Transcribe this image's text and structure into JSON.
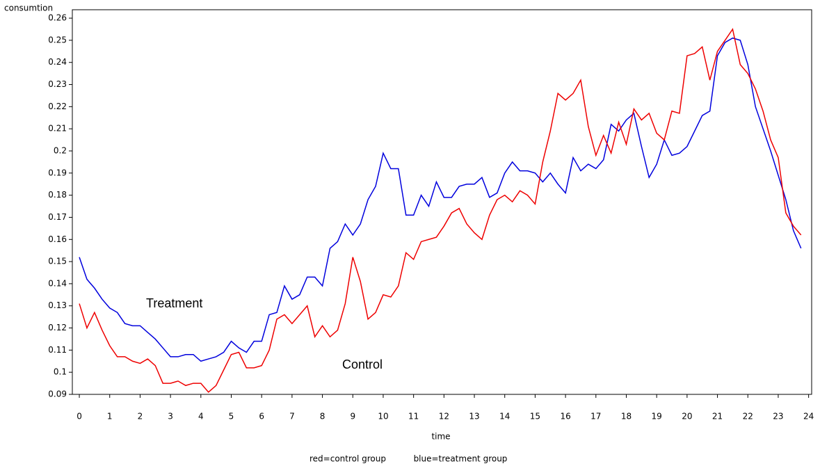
{
  "chart_data": {
    "type": "line",
    "ylabel": "consumtion",
    "xlabel": "time",
    "footnote": [
      "red=control group",
      "blue=treatment group"
    ],
    "annotations": [
      "Treatment",
      "Control"
    ],
    "xlim": [
      -0.23,
      24.1
    ],
    "ylim": [
      0.09,
      0.2638
    ],
    "xticks": [
      0,
      1,
      2,
      3,
      4,
      5,
      6,
      7,
      8,
      9,
      10,
      11,
      12,
      13,
      14,
      15,
      16,
      17,
      18,
      19,
      20,
      21,
      22,
      23,
      24
    ],
    "yticks": [
      0.09,
      0.1,
      0.11,
      0.12,
      0.13,
      0.14,
      0.15,
      0.16,
      0.17,
      0.18,
      0.19,
      0.2,
      0.21,
      0.22,
      0.23,
      0.24,
      0.25,
      0.26
    ],
    "x": [
      0,
      0.25,
      0.5,
      0.75,
      1,
      1.25,
      1.5,
      1.75,
      2,
      2.25,
      2.5,
      2.75,
      3,
      3.25,
      3.5,
      3.75,
      4,
      4.25,
      4.5,
      4.75,
      5,
      5.25,
      5.5,
      5.75,
      6,
      6.25,
      6.5,
      6.75,
      7,
      7.25,
      7.5,
      7.75,
      8,
      8.25,
      8.5,
      8.75,
      9,
      9.25,
      9.5,
      9.75,
      10,
      10.25,
      10.5,
      10.75,
      11,
      11.25,
      11.5,
      11.75,
      12,
      12.25,
      12.5,
      12.75,
      13,
      13.25,
      13.5,
      13.75,
      14,
      14.25,
      14.5,
      14.75,
      15,
      15.25,
      15.5,
      15.75,
      16,
      16.25,
      16.5,
      16.75,
      17,
      17.25,
      17.5,
      17.75,
      18,
      18.25,
      18.5,
      18.75,
      19,
      19.25,
      19.5,
      19.75,
      20,
      20.25,
      20.5,
      20.75,
      21,
      21.25,
      21.5,
      21.75,
      22,
      22.25,
      22.5,
      22.75,
      23,
      23.25,
      23.5,
      23.75
    ],
    "series": [
      {
        "name": "treatment",
        "color": "#0000dd",
        "values": [
          0.152,
          0.142,
          0.138,
          0.133,
          0.129,
          0.127,
          0.122,
          0.121,
          0.121,
          0.118,
          0.115,
          0.111,
          0.107,
          0.107,
          0.108,
          0.108,
          0.105,
          0.106,
          0.107,
          0.109,
          0.114,
          0.111,
          0.109,
          0.114,
          0.114,
          0.126,
          0.127,
          0.139,
          0.133,
          0.135,
          0.143,
          0.143,
          0.139,
          0.156,
          0.159,
          0.167,
          0.162,
          0.167,
          0.178,
          0.184,
          0.199,
          0.192,
          0.192,
          0.171,
          0.171,
          0.18,
          0.175,
          0.186,
          0.179,
          0.179,
          0.184,
          0.185,
          0.185,
          0.188,
          0.179,
          0.181,
          0.19,
          0.195,
          0.191,
          0.191,
          0.19,
          0.186,
          0.19,
          0.185,
          0.181,
          0.197,
          0.191,
          0.194,
          0.192,
          0.196,
          0.212,
          0.209,
          0.214,
          0.217,
          0.202,
          0.188,
          0.194,
          0.205,
          0.198,
          0.199,
          0.202,
          0.209,
          0.216,
          0.218,
          0.243,
          0.249,
          0.251,
          0.25,
          0.239,
          0.22,
          0.21,
          0.2,
          0.189,
          0.178,
          0.164,
          0.156
        ]
      },
      {
        "name": "control",
        "color": "#ee0000",
        "values": [
          0.131,
          0.12,
          0.127,
          0.119,
          0.112,
          0.107,
          0.107,
          0.105,
          0.104,
          0.106,
          0.103,
          0.095,
          0.095,
          0.096,
          0.094,
          0.095,
          0.095,
          0.091,
          0.094,
          0.101,
          0.108,
          0.109,
          0.102,
          0.102,
          0.103,
          0.11,
          0.124,
          0.126,
          0.122,
          0.126,
          0.13,
          0.116,
          0.121,
          0.116,
          0.119,
          0.131,
          0.152,
          0.141,
          0.124,
          0.127,
          0.135,
          0.134,
          0.139,
          0.154,
          0.151,
          0.159,
          0.16,
          0.161,
          0.166,
          0.172,
          0.174,
          0.167,
          0.163,
          0.16,
          0.171,
          0.178,
          0.18,
          0.177,
          0.182,
          0.18,
          0.176,
          0.195,
          0.209,
          0.226,
          0.223,
          0.226,
          0.232,
          0.211,
          0.198,
          0.207,
          0.199,
          0.213,
          0.203,
          0.219,
          0.214,
          0.217,
          0.208,
          0.205,
          0.218,
          0.217,
          0.243,
          0.244,
          0.247,
          0.232,
          0.245,
          0.25,
          0.255,
          0.239,
          0.235,
          0.228,
          0.218,
          0.205,
          0.197,
          0.172,
          0.166,
          0.162
        ]
      }
    ]
  }
}
